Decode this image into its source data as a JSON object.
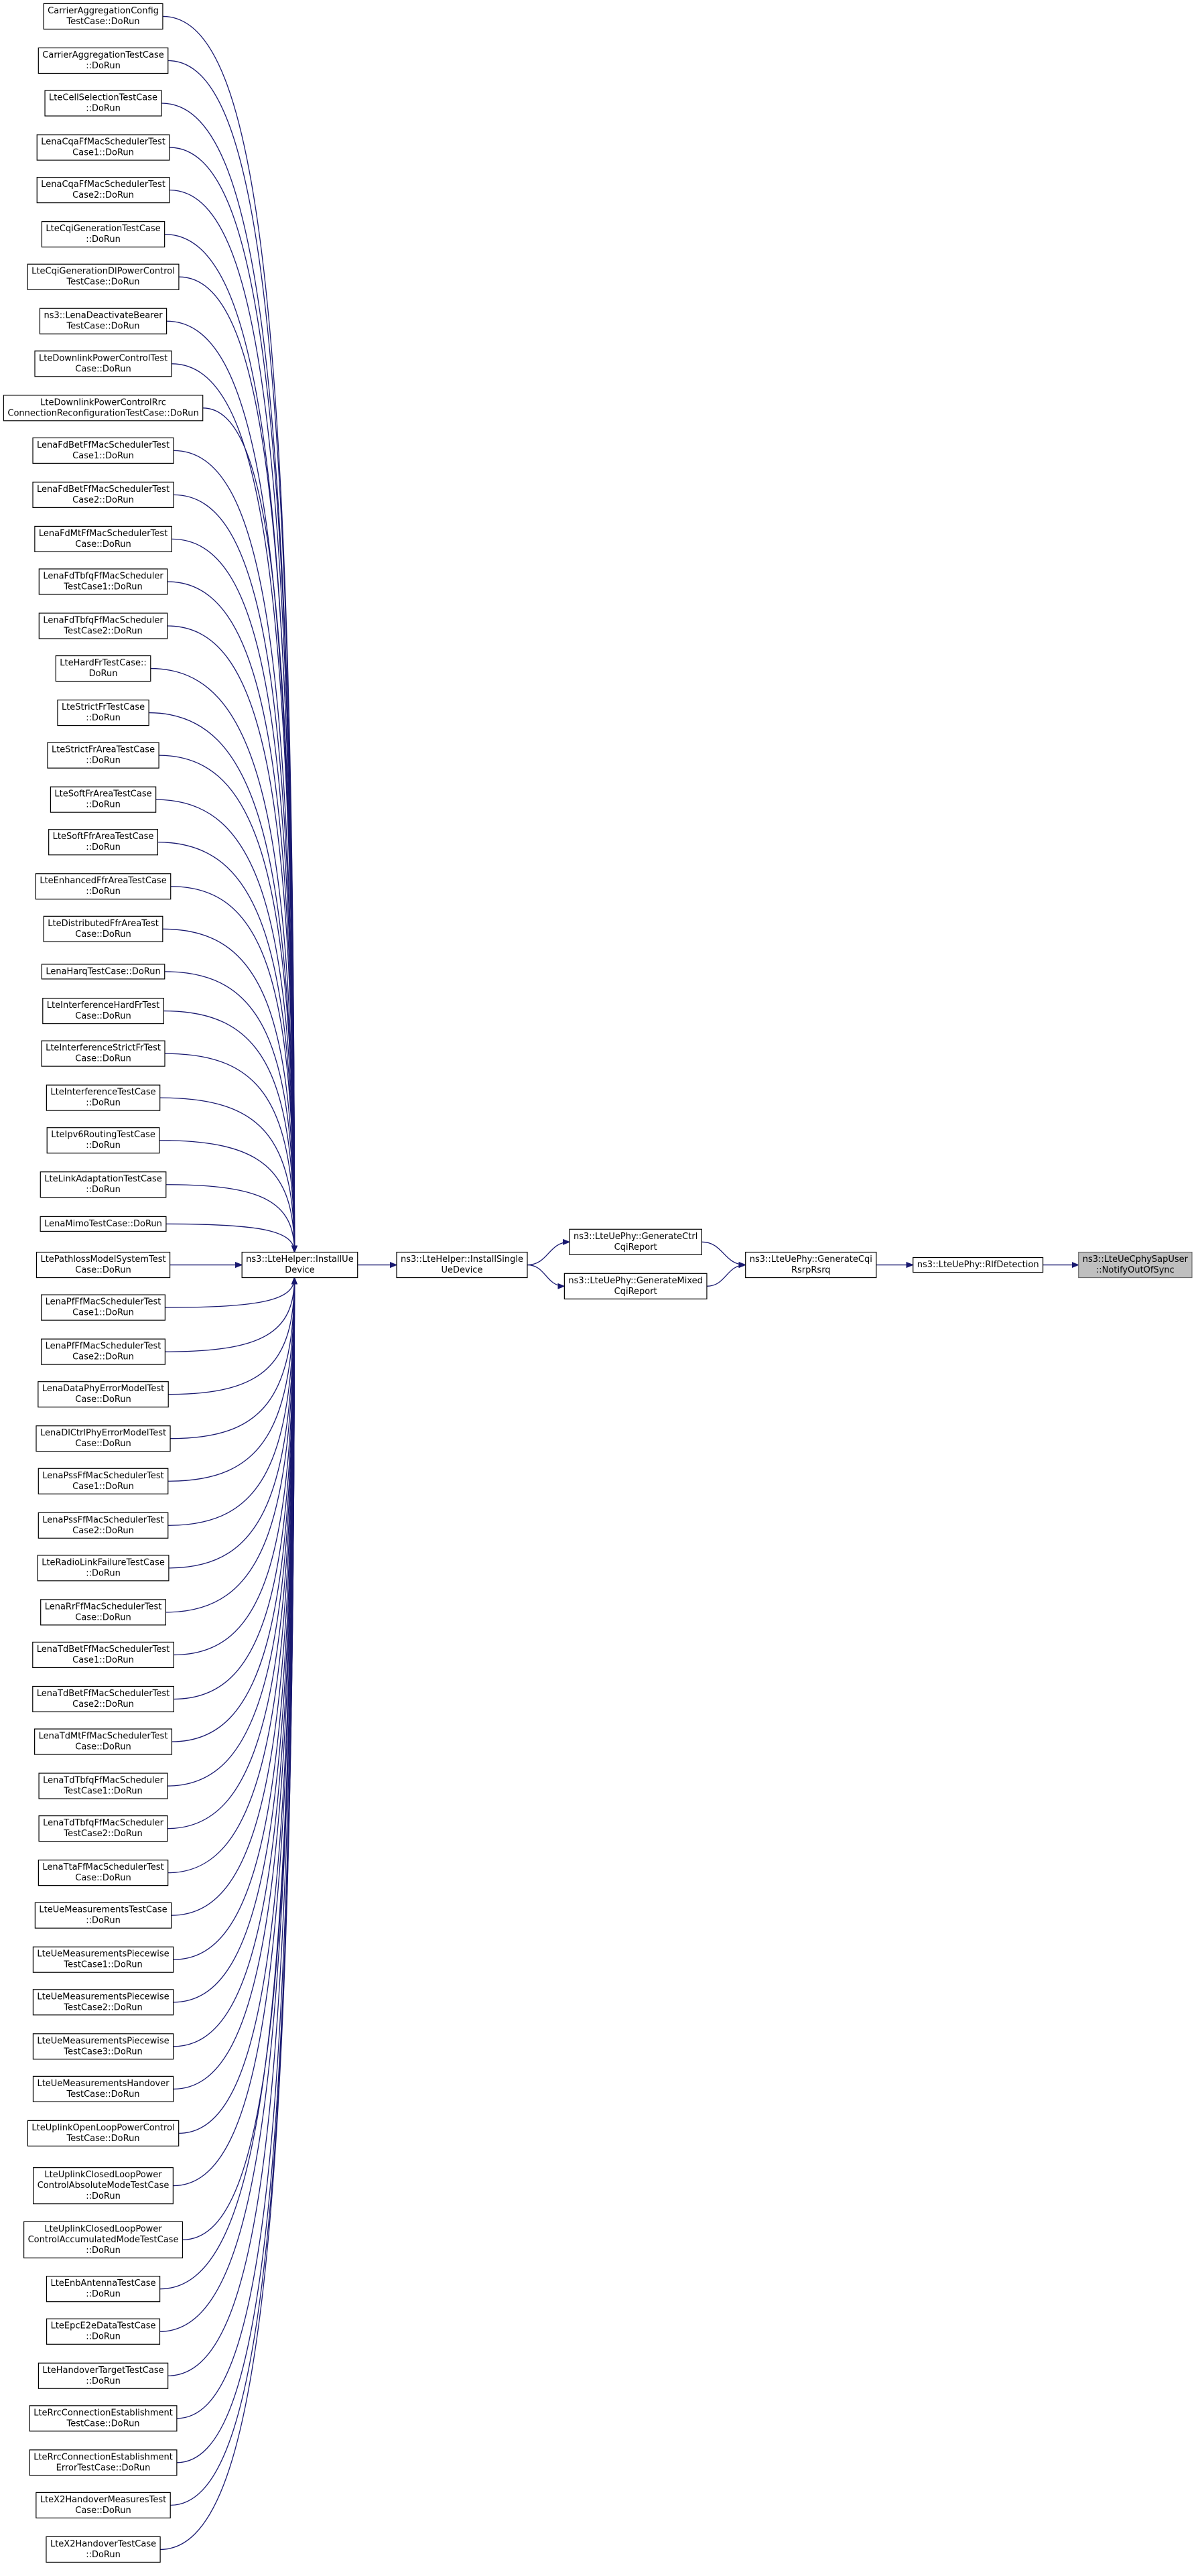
{
  "left_nodes": [
    {
      "lines": [
        "CarrierAggregationConfig",
        "TestCase::DoRun"
      ]
    },
    {
      "lines": [
        "CarrierAggregationTestCase",
        "::DoRun"
      ]
    },
    {
      "lines": [
        "LteCellSelectionTestCase",
        "::DoRun"
      ]
    },
    {
      "lines": [
        "LenaCqaFfMacSchedulerTest",
        "Case1::DoRun"
      ]
    },
    {
      "lines": [
        "LenaCqaFfMacSchedulerTest",
        "Case2::DoRun"
      ]
    },
    {
      "lines": [
        "LteCqiGenerationTestCase",
        "::DoRun"
      ]
    },
    {
      "lines": [
        "LteCqiGenerationDlPowerControl",
        "TestCase::DoRun"
      ]
    },
    {
      "lines": [
        "ns3::LenaDeactivateBearer",
        "TestCase::DoRun"
      ]
    },
    {
      "lines": [
        "LteDownlinkPowerControlTest",
        "Case::DoRun"
      ]
    },
    {
      "lines": [
        "LteDownlinkPowerControlRrc",
        "ConnectionReconfigurationTestCase::DoRun"
      ]
    },
    {
      "lines": [
        "LenaFdBetFfMacSchedulerTest",
        "Case1::DoRun"
      ]
    },
    {
      "lines": [
        "LenaFdBetFfMacSchedulerTest",
        "Case2::DoRun"
      ]
    },
    {
      "lines": [
        "LenaFdMtFfMacSchedulerTest",
        "Case::DoRun"
      ]
    },
    {
      "lines": [
        "LenaFdTbfqFfMacScheduler",
        "TestCase1::DoRun"
      ]
    },
    {
      "lines": [
        "LenaFdTbfqFfMacScheduler",
        "TestCase2::DoRun"
      ]
    },
    {
      "lines": [
        "LteHardFrTestCase::",
        "DoRun"
      ]
    },
    {
      "lines": [
        "LteStrictFrTestCase",
        "::DoRun"
      ]
    },
    {
      "lines": [
        "LteStrictFrAreaTestCase",
        "::DoRun"
      ]
    },
    {
      "lines": [
        "LteSoftFrAreaTestCase",
        "::DoRun"
      ]
    },
    {
      "lines": [
        "LteSoftFfrAreaTestCase",
        "::DoRun"
      ]
    },
    {
      "lines": [
        "LteEnhancedFfrAreaTestCase",
        "::DoRun"
      ]
    },
    {
      "lines": [
        "LteDistributedFfrAreaTest",
        "Case::DoRun"
      ]
    },
    {
      "lines": [
        "LenaHarqTestCase::DoRun"
      ]
    },
    {
      "lines": [
        "LteInterferenceHardFrTest",
        "Case::DoRun"
      ]
    },
    {
      "lines": [
        "LteInterferenceStrictFrTest",
        "Case::DoRun"
      ]
    },
    {
      "lines": [
        "LteInterferenceTestCase",
        "::DoRun"
      ]
    },
    {
      "lines": [
        "LteIpv6RoutingTestCase",
        "::DoRun"
      ]
    },
    {
      "lines": [
        "LteLinkAdaptationTestCase",
        "::DoRun"
      ]
    },
    {
      "lines": [
        "LenaMimoTestCase::DoRun"
      ]
    },
    {
      "lines": [
        "LtePathlossModelSystemTest",
        "Case::DoRun"
      ]
    },
    {
      "lines": [
        "LenaPfFfMacSchedulerTest",
        "Case1::DoRun"
      ]
    },
    {
      "lines": [
        "LenaPfFfMacSchedulerTest",
        "Case2::DoRun"
      ]
    },
    {
      "lines": [
        "LenaDataPhyErrorModelTest",
        "Case::DoRun"
      ]
    },
    {
      "lines": [
        "LenaDlCtrlPhyErrorModelTest",
        "Case::DoRun"
      ]
    },
    {
      "lines": [
        "LenaPssFfMacSchedulerTest",
        "Case1::DoRun"
      ]
    },
    {
      "lines": [
        "LenaPssFfMacSchedulerTest",
        "Case2::DoRun"
      ]
    },
    {
      "lines": [
        "LteRadioLinkFailureTestCase",
        "::DoRun"
      ]
    },
    {
      "lines": [
        "LenaRrFfMacSchedulerTest",
        "Case::DoRun"
      ]
    },
    {
      "lines": [
        "LenaTdBetFfMacSchedulerTest",
        "Case1::DoRun"
      ]
    },
    {
      "lines": [
        "LenaTdBetFfMacSchedulerTest",
        "Case2::DoRun"
      ]
    },
    {
      "lines": [
        "LenaTdMtFfMacSchedulerTest",
        "Case::DoRun"
      ]
    },
    {
      "lines": [
        "LenaTdTbfqFfMacScheduler",
        "TestCase1::DoRun"
      ]
    },
    {
      "lines": [
        "LenaTdTbfqFfMacScheduler",
        "TestCase2::DoRun"
      ]
    },
    {
      "lines": [
        "LenaTtaFfMacSchedulerTest",
        "Case::DoRun"
      ]
    },
    {
      "lines": [
        "LteUeMeasurementsTestCase",
        "::DoRun"
      ]
    },
    {
      "lines": [
        "LteUeMeasurementsPiecewise",
        "TestCase1::DoRun"
      ]
    },
    {
      "lines": [
        "LteUeMeasurementsPiecewise",
        "TestCase2::DoRun"
      ]
    },
    {
      "lines": [
        "LteUeMeasurementsPiecewise",
        "TestCase3::DoRun"
      ]
    },
    {
      "lines": [
        "LteUeMeasurementsHandover",
        "TestCase::DoRun"
      ]
    },
    {
      "lines": [
        "LteUplinkOpenLoopPowerControl",
        "TestCase::DoRun"
      ]
    },
    {
      "lines": [
        "LteUplinkClosedLoopPower",
        "ControlAbsoluteModeTestCase",
        "::DoRun"
      ]
    },
    {
      "lines": [
        "LteUplinkClosedLoopPower",
        "ControlAccumulatedModeTestCase",
        "::DoRun"
      ]
    },
    {
      "lines": [
        "LteEnbAntennaTestCase",
        "::DoRun"
      ]
    },
    {
      "lines": [
        "LteEpcE2eDataTestCase",
        "::DoRun"
      ]
    },
    {
      "lines": [
        "LteHandoverTargetTestCase",
        "::DoRun"
      ]
    },
    {
      "lines": [
        "LteRrcConnectionEstablishment",
        "TestCase::DoRun"
      ]
    },
    {
      "lines": [
        "LteRrcConnectionEstablishment",
        "ErrorTestCase::DoRun"
      ]
    },
    {
      "lines": [
        "LteX2HandoverMeasuresTest",
        "Case::DoRun"
      ]
    },
    {
      "lines": [
        "LteX2HandoverTestCase",
        "::DoRun"
      ]
    }
  ],
  "right_nodes": [
    {
      "lines": [
        "ns3::LteHelper::InstallUe",
        "Device"
      ]
    },
    {
      "lines": [
        "ns3::LteHelper::InstallSingle",
        "UeDevice"
      ]
    },
    {
      "lines": [
        "ns3::LteUePhy::GenerateCtrl",
        "CqiReport"
      ]
    },
    {
      "lines": [
        "ns3::LteUePhy::GenerateMixed",
        "CqiReport"
      ]
    },
    {
      "lines": [
        "ns3::LteUePhy::GenerateCqi",
        "RsrpRsrq"
      ]
    },
    {
      "lines": [
        "ns3::LteUePhy::RlfDetection"
      ]
    },
    {
      "lines": [
        "ns3::LteUeCphySapUser",
        "::NotifyOutOfSync"
      ]
    }
  ]
}
